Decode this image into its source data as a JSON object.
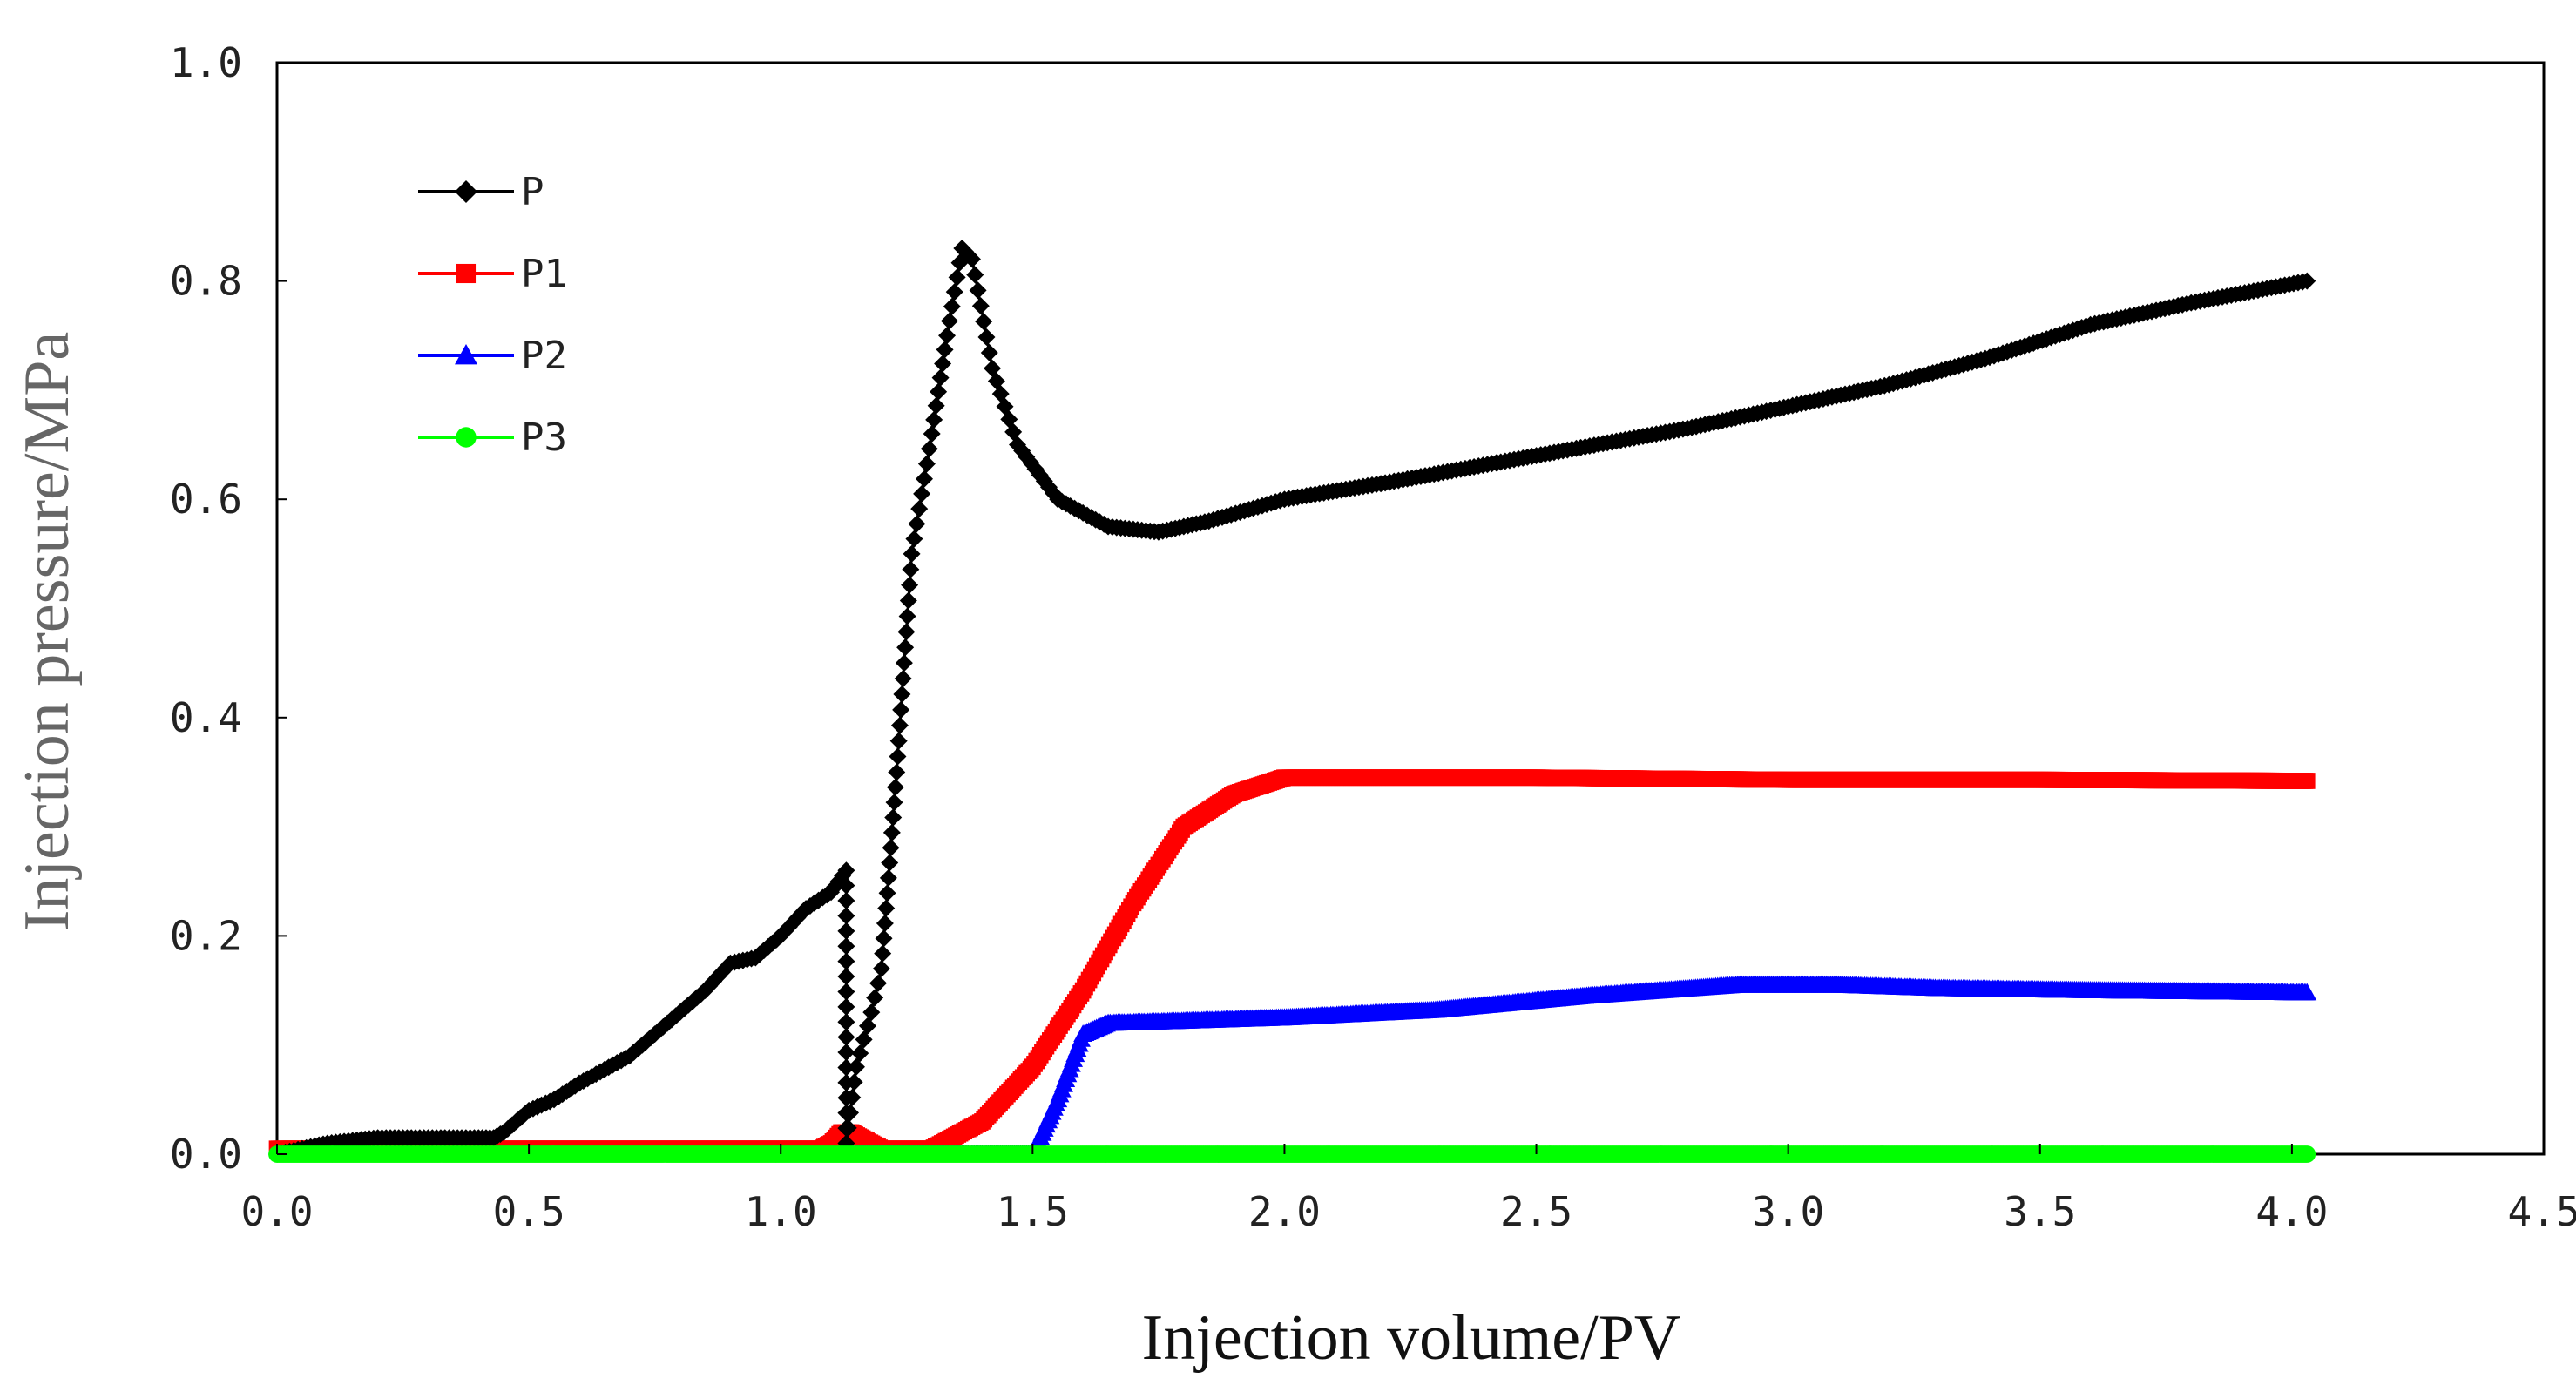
{
  "chart_data": {
    "type": "line",
    "title": "",
    "xlabel": "Injection volume/PV",
    "ylabel": "Injection pressure/MPa",
    "xlim": [
      0.0,
      4.5
    ],
    "ylim": [
      0.0,
      1.0
    ],
    "x_ticks": [
      "0.0",
      "0.5",
      "1.0",
      "1.5",
      "2.0",
      "2.5",
      "3.0",
      "3.5",
      "4.0",
      "4.5"
    ],
    "y_ticks": [
      "0.0",
      "0.2",
      "0.4",
      "0.6",
      "0.8",
      "1.0"
    ],
    "grid": false,
    "legend_position": "top-left",
    "series": [
      {
        "name": "P",
        "color": "#000000",
        "marker": "diamond",
        "points": [
          [
            0.0,
            0.0
          ],
          [
            0.1,
            0.01
          ],
          [
            0.2,
            0.015
          ],
          [
            0.3,
            0.015
          ],
          [
            0.4,
            0.015
          ],
          [
            0.43,
            0.015
          ],
          [
            0.45,
            0.02
          ],
          [
            0.5,
            0.04
          ],
          [
            0.55,
            0.05
          ],
          [
            0.6,
            0.065
          ],
          [
            0.7,
            0.09
          ],
          [
            0.8,
            0.13
          ],
          [
            0.85,
            0.15
          ],
          [
            0.9,
            0.175
          ],
          [
            0.95,
            0.18
          ],
          [
            1.0,
            0.2
          ],
          [
            1.05,
            0.225
          ],
          [
            1.1,
            0.24
          ],
          [
            1.13,
            0.26
          ],
          [
            1.13,
            0.01
          ],
          [
            1.15,
            0.08
          ],
          [
            1.18,
            0.13
          ],
          [
            1.2,
            0.17
          ],
          [
            1.23,
            0.35
          ],
          [
            1.26,
            0.55
          ],
          [
            1.3,
            0.66
          ],
          [
            1.33,
            0.75
          ],
          [
            1.36,
            0.83
          ],
          [
            1.38,
            0.82
          ],
          [
            1.42,
            0.72
          ],
          [
            1.47,
            0.65
          ],
          [
            1.55,
            0.6
          ],
          [
            1.65,
            0.575
          ],
          [
            1.75,
            0.57
          ],
          [
            1.85,
            0.58
          ],
          [
            2.0,
            0.6
          ],
          [
            2.2,
            0.615
          ],
          [
            2.5,
            0.64
          ],
          [
            2.8,
            0.665
          ],
          [
            3.0,
            0.685
          ],
          [
            3.2,
            0.705
          ],
          [
            3.4,
            0.73
          ],
          [
            3.6,
            0.76
          ],
          [
            3.8,
            0.78
          ],
          [
            4.03,
            0.8
          ]
        ]
      },
      {
        "name": "P1",
        "color": "#ff0000",
        "marker": "square",
        "points": [
          [
            0.0,
            0.005
          ],
          [
            1.0,
            0.005
          ],
          [
            1.08,
            0.005
          ],
          [
            1.1,
            0.01
          ],
          [
            1.12,
            0.02
          ],
          [
            1.14,
            0.02
          ],
          [
            1.2,
            0.005
          ],
          [
            1.3,
            0.005
          ],
          [
            1.4,
            0.03
          ],
          [
            1.5,
            0.08
          ],
          [
            1.6,
            0.15
          ],
          [
            1.7,
            0.23
          ],
          [
            1.8,
            0.3
          ],
          [
            1.9,
            0.33
          ],
          [
            2.0,
            0.345
          ],
          [
            2.2,
            0.345
          ],
          [
            2.5,
            0.345
          ],
          [
            3.0,
            0.343
          ],
          [
            3.5,
            0.343
          ],
          [
            4.03,
            0.342
          ]
        ]
      },
      {
        "name": "P2",
        "color": "#0000ff",
        "marker": "triangle",
        "points": [
          [
            1.12,
            0.0
          ],
          [
            1.5,
            0.0
          ],
          [
            1.55,
            0.05
          ],
          [
            1.6,
            0.11
          ],
          [
            1.65,
            0.12
          ],
          [
            1.8,
            0.122
          ],
          [
            2.0,
            0.125
          ],
          [
            2.3,
            0.132
          ],
          [
            2.6,
            0.145
          ],
          [
            2.9,
            0.155
          ],
          [
            3.1,
            0.155
          ],
          [
            3.3,
            0.152
          ],
          [
            3.6,
            0.15
          ],
          [
            4.03,
            0.148
          ]
        ]
      },
      {
        "name": "P3",
        "color": "#00ff00",
        "marker": "circle",
        "points": [
          [
            0.0,
            0.0
          ],
          [
            4.03,
            0.0
          ]
        ]
      }
    ]
  }
}
